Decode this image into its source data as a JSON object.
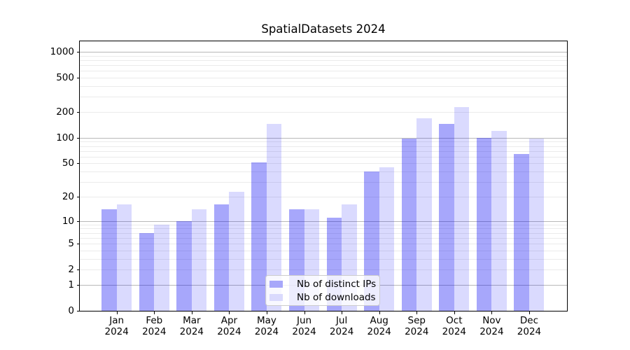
{
  "title": "SpatialDatasets 2024",
  "legend": {
    "items": [
      "Nb of distinct IPs",
      "Nb of downloads"
    ]
  },
  "chart_data": {
    "type": "bar",
    "title": "SpatialDatasets 2024",
    "categories": [
      "Jan 2024",
      "Feb 2024",
      "Mar 2024",
      "Apr 2024",
      "May 2024",
      "Jun 2024",
      "Jul 2024",
      "Aug 2024",
      "Sep 2024",
      "Oct 2024",
      "Nov 2024",
      "Dec 2024"
    ],
    "series": [
      {
        "name": "Nb of distinct IPs",
        "key": "ips",
        "color": "rgba(10,10,245,0.36)",
        "swatch_color": "#a7a7fa",
        "values": [
          14,
          7,
          10,
          16,
          51,
          14,
          11,
          40,
          98,
          145,
          100,
          65
        ]
      },
      {
        "name": "Nb of downloads",
        "key": "downloads",
        "color": "rgba(10,10,245,0.15)",
        "swatch_color": "#dadafd",
        "values": [
          16,
          9,
          14,
          23,
          146,
          14,
          16,
          45,
          170,
          230,
          120,
          97
        ]
      }
    ],
    "xlabel": "",
    "ylabel": "",
    "yscale": "symlog",
    "y_axis_ticks": [
      0,
      1,
      2,
      5,
      10,
      20,
      50,
      100,
      200,
      500,
      1000
    ],
    "ylim": [
      0,
      1320
    ],
    "grid": "horizontal major and minor gridlines",
    "legend_position": "lower center",
    "colors": {
      "grid_major": "#b8b8b8",
      "grid_minor": "#ebebeb",
      "axis": "#000000"
    }
  }
}
